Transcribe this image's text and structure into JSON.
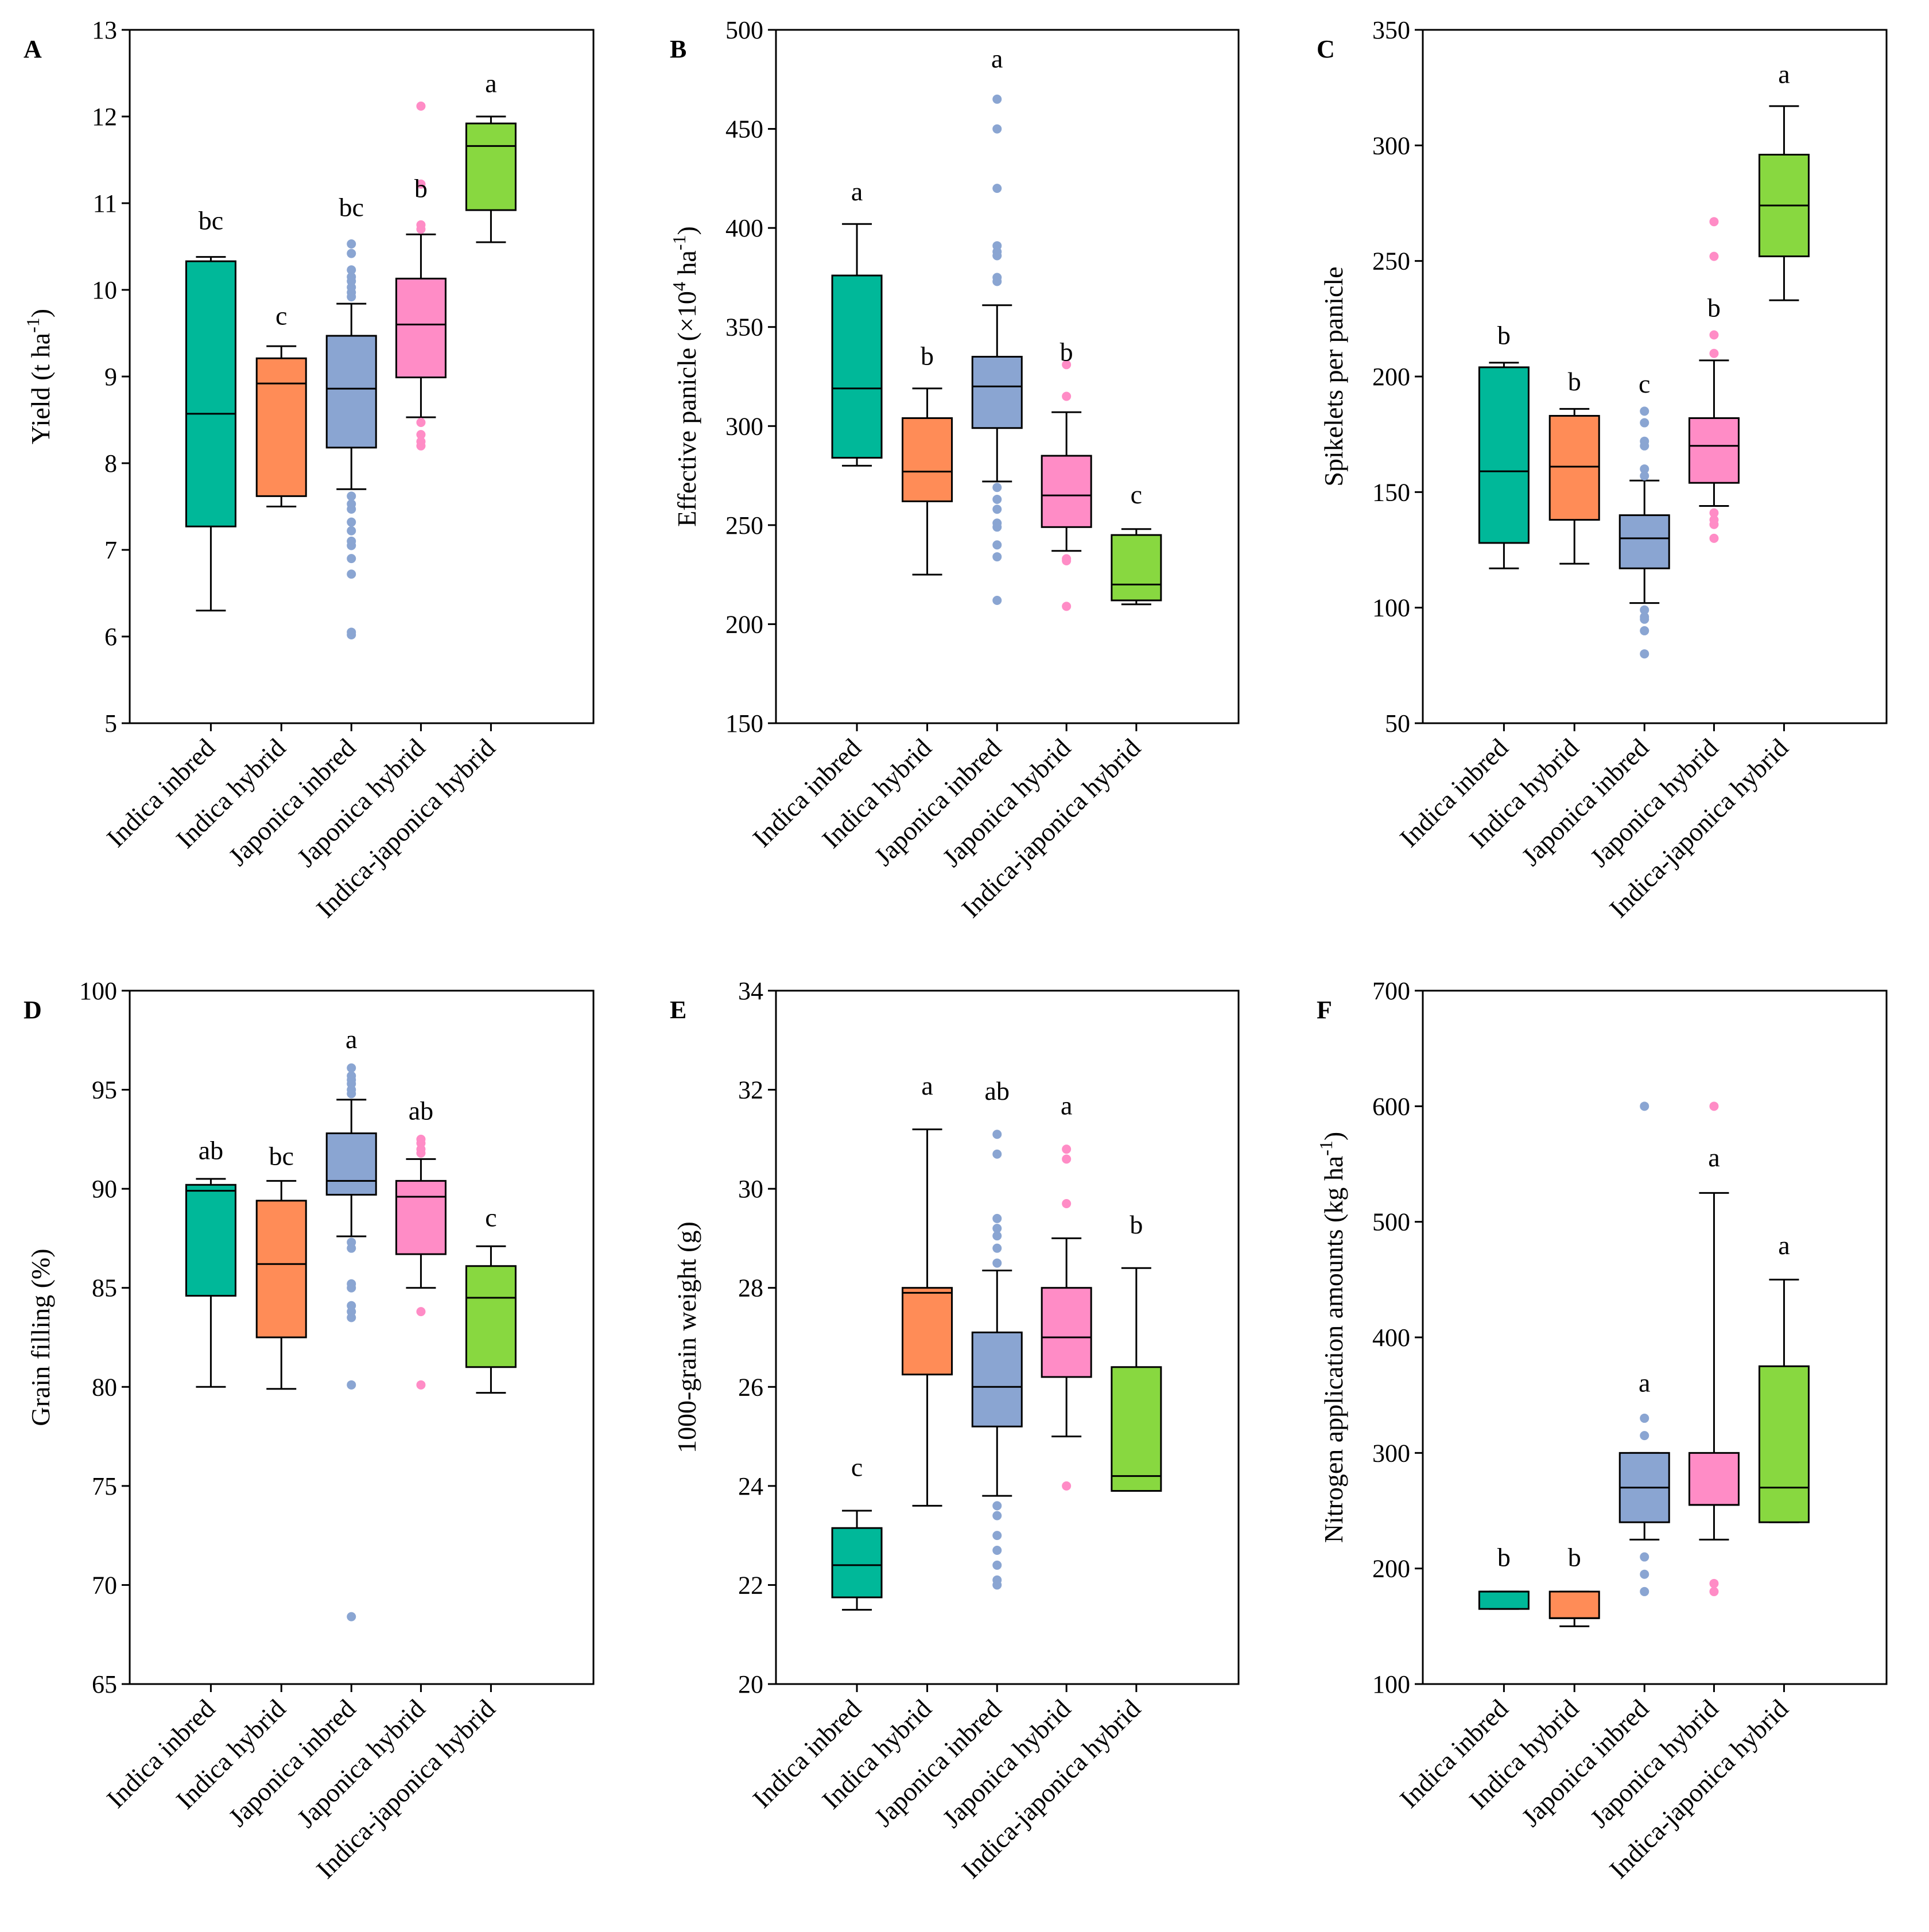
{
  "colors": {
    "Indica inbred": "#00b899",
    "Indica hybrid": "#ff8c57",
    "Japonica inbred": "#8aa5d2",
    "Japonica hybrid": "#ff8cc6",
    "Indica-japonica hybrid": "#88d840"
  },
  "chart_data": [
    {
      "panel": "A",
      "type": "boxplot",
      "ylabel": "Yield (t ha",
      "ylabel_sup": "-1",
      "ylabel_post": ")",
      "ylim": [
        5,
        13
      ],
      "yticks": [
        5,
        6,
        7,
        8,
        9,
        10,
        11,
        12,
        13
      ],
      "categories": [
        "Indica inbred",
        "Indica hybrid",
        "Japonica inbred",
        "Japonica hybrid",
        "Indica-japonica hybrid"
      ],
      "boxes": [
        {
          "min": 6.3,
          "q1": 7.27,
          "median": 8.57,
          "q3": 10.33,
          "max": 10.38,
          "outliers": []
        },
        {
          "min": 7.5,
          "q1": 7.62,
          "median": 8.92,
          "q3": 9.21,
          "max": 9.35,
          "outliers": []
        },
        {
          "min": 7.7,
          "q1": 8.18,
          "median": 8.86,
          "q3": 9.47,
          "max": 9.84,
          "outliers": [
            10.53,
            10.42,
            10.23,
            10.15,
            10.1,
            10.03,
            9.97,
            9.92,
            7.62,
            7.53,
            7.47,
            7.32,
            7.22,
            7.1,
            7.05,
            6.9,
            6.72,
            6.05,
            6.02
          ]
        },
        {
          "min": 8.53,
          "q1": 8.99,
          "median": 9.6,
          "q3": 10.13,
          "max": 10.64,
          "outliers": [
            12.12,
            11.22,
            10.75,
            10.7,
            8.47,
            8.33,
            8.25,
            8.2
          ]
        },
        {
          "min": 10.55,
          "q1": 10.92,
          "median": 11.66,
          "q3": 11.92,
          "max": 12.0,
          "outliers": []
        }
      ],
      "letters": [
        "bc",
        "c",
        "bc",
        "b",
        "a"
      ],
      "letter_values": [
        10.7,
        9.6,
        10.85,
        11.07,
        12.28
      ]
    },
    {
      "panel": "B",
      "type": "boxplot",
      "ylabel": "Effective panicle (×10",
      "ylabel_sup": "4",
      "ylabel_mid": " ha",
      "ylabel_sup2": "-1",
      "ylabel_post": ")",
      "ylim": [
        150,
        500
      ],
      "yticks": [
        150,
        200,
        250,
        300,
        350,
        400,
        450,
        500
      ],
      "categories": [
        "Indica inbred",
        "Indica hybrid",
        "Japonica inbred",
        "Japonica hybrid",
        "Indica-japonica hybrid"
      ],
      "boxes": [
        {
          "min": 280,
          "q1": 284,
          "median": 319,
          "q3": 376,
          "max": 402,
          "outliers": []
        },
        {
          "min": 225,
          "q1": 262,
          "median": 277,
          "q3": 304,
          "max": 319,
          "outliers": []
        },
        {
          "min": 272,
          "q1": 299,
          "median": 320,
          "q3": 335,
          "max": 361,
          "outliers": [
            465,
            450,
            420,
            391,
            388,
            386,
            375,
            373,
            269,
            263,
            258,
            251,
            249,
            240,
            234,
            212
          ]
        },
        {
          "min": 237,
          "q1": 249,
          "median": 265,
          "q3": 285,
          "max": 307,
          "outliers": [
            331,
            315,
            233,
            232,
            209
          ]
        },
        {
          "min": 210,
          "q1": 212,
          "median": 220,
          "q3": 245,
          "max": 248,
          "outliers": []
        }
      ],
      "letters": [
        "a",
        "b",
        "a",
        "b",
        "c"
      ],
      "letter_values": [
        414,
        331,
        481,
        333,
        261
      ]
    },
    {
      "panel": "C",
      "type": "boxplot",
      "ylabel": "Spikelets per panicle",
      "ylim": [
        50,
        350
      ],
      "yticks": [
        50,
        100,
        150,
        200,
        250,
        300,
        350
      ],
      "categories": [
        "Indica inbred",
        "Indica hybrid",
        "Japonica inbred",
        "Japonica hybrid",
        "Indica-japonica hybrid"
      ],
      "boxes": [
        {
          "min": 117,
          "q1": 128,
          "median": 159,
          "q3": 204,
          "max": 206,
          "outliers": []
        },
        {
          "min": 119,
          "q1": 138,
          "median": 161,
          "q3": 183,
          "max": 186,
          "outliers": []
        },
        {
          "min": 102,
          "q1": 117,
          "median": 130,
          "q3": 140,
          "max": 155,
          "outliers": [
            185,
            180,
            172,
            170,
            160,
            157,
            99,
            96,
            95,
            90,
            80
          ]
        },
        {
          "min": 144,
          "q1": 154,
          "median": 170,
          "q3": 182,
          "max": 207,
          "outliers": [
            267,
            252,
            218,
            210,
            141,
            138,
            136,
            130
          ]
        },
        {
          "min": 233,
          "q1": 252,
          "median": 274,
          "q3": 296,
          "max": 317,
          "outliers": []
        }
      ],
      "letters": [
        "b",
        "b",
        "c",
        "b",
        "a"
      ],
      "letter_values": [
        214,
        194,
        193,
        226,
        327
      ]
    },
    {
      "panel": "D",
      "type": "boxplot",
      "ylabel": "Grain filling (%)",
      "ylim": [
        65,
        100
      ],
      "yticks": [
        65,
        70,
        75,
        80,
        85,
        90,
        95,
        100
      ],
      "categories": [
        "Indica inbred",
        "Indica hybrid",
        "Japonica inbred",
        "Japonica hybrid",
        "Indica-japonica hybrid"
      ],
      "boxes": [
        {
          "min": 80.0,
          "q1": 84.6,
          "median": 89.9,
          "q3": 90.2,
          "max": 90.5,
          "outliers": []
        },
        {
          "min": 79.9,
          "q1": 82.5,
          "median": 86.2,
          "q3": 89.4,
          "max": 90.4,
          "outliers": []
        },
        {
          "min": 87.6,
          "q1": 89.7,
          "median": 90.4,
          "q3": 92.8,
          "max": 94.5,
          "outliers": [
            96.1,
            95.7,
            95.5,
            95.3,
            95.0,
            94.8,
            87.3,
            87.0,
            85.2,
            85.0,
            84.1,
            83.8,
            83.5,
            80.1,
            68.4
          ]
        },
        {
          "min": 85.0,
          "q1": 86.7,
          "median": 89.6,
          "q3": 90.4,
          "max": 91.5,
          "outliers": [
            92.5,
            92.3,
            92.0,
            91.8,
            83.8,
            80.1
          ]
        },
        {
          "min": 79.7,
          "q1": 81.0,
          "median": 84.5,
          "q3": 86.1,
          "max": 87.1,
          "outliers": []
        }
      ],
      "letters": [
        "ab",
        "bc",
        "a",
        "ab",
        "c"
      ],
      "letter_values": [
        91.5,
        91.2,
        97.1,
        93.5,
        88.1
      ]
    },
    {
      "panel": "E",
      "type": "boxplot",
      "ylabel": "1000-grain weight (g)",
      "ylim": [
        20,
        34
      ],
      "yticks": [
        20,
        22,
        24,
        26,
        28,
        30,
        32,
        34
      ],
      "categories": [
        "Indica inbred",
        "Indica hybrid",
        "Japonica inbred",
        "Japonica hybrid",
        "Indica-japonica hybrid"
      ],
      "boxes": [
        {
          "min": 21.5,
          "q1": 21.75,
          "median": 22.4,
          "q3": 23.15,
          "max": 23.5,
          "outliers": []
        },
        {
          "min": 23.6,
          "q1": 26.25,
          "median": 27.9,
          "q3": 28.0,
          "max": 31.2,
          "outliers": []
        },
        {
          "min": 23.8,
          "q1": 25.2,
          "median": 26.0,
          "q3": 27.1,
          "max": 28.35,
          "outliers": [
            31.1,
            30.7,
            29.4,
            29.2,
            29.05,
            28.8,
            28.5,
            23.6,
            23.4,
            23.0,
            22.7,
            22.4,
            22.1,
            22.0
          ]
        },
        {
          "min": 25.0,
          "q1": 26.2,
          "median": 27.0,
          "q3": 28.0,
          "max": 29.0,
          "outliers": [
            30.8,
            30.6,
            29.7,
            24.0
          ]
        },
        {
          "min": 23.9,
          "q1": 23.9,
          "median": 24.2,
          "q3": 26.4,
          "max": 28.4,
          "outliers": []
        }
      ],
      "letters": [
        "c",
        "a",
        "ab",
        "a",
        "b"
      ],
      "letter_values": [
        24.2,
        31.9,
        31.8,
        31.5,
        29.1
      ]
    },
    {
      "panel": "F",
      "type": "boxplot",
      "ylabel": "Nitrogen application amounts (kg ha",
      "ylabel_sup": "-1",
      "ylabel_post": ")",
      "ylim": [
        100,
        700
      ],
      "yticks": [
        100,
        200,
        300,
        400,
        500,
        600,
        700
      ],
      "categories": [
        "Indica inbred",
        "Indica hybrid",
        "Japonica inbred",
        "Japonica hybrid",
        "Indica-japonica hybrid"
      ],
      "boxes": [
        {
          "min": 165,
          "q1": 165,
          "median": 180,
          "q3": 180,
          "max": 180,
          "outliers": []
        },
        {
          "min": 150,
          "q1": 157,
          "median": 157,
          "q3": 180,
          "max": 180,
          "outliers": []
        },
        {
          "min": 225,
          "q1": 240,
          "median": 270,
          "q3": 300,
          "max": 300,
          "outliers": [
            600,
            330,
            315,
            210,
            195,
            180
          ]
        },
        {
          "min": 225,
          "q1": 255,
          "median": 255,
          "q3": 300,
          "max": 525,
          "outliers": [
            600,
            187,
            180
          ]
        },
        {
          "min": 240,
          "q1": 240,
          "median": 270,
          "q3": 375,
          "max": 450,
          "outliers": []
        }
      ],
      "letters": [
        "b",
        "b",
        "a",
        "a",
        "a"
      ],
      "letter_values": [
        202,
        202,
        353,
        548,
        472
      ]
    }
  ]
}
